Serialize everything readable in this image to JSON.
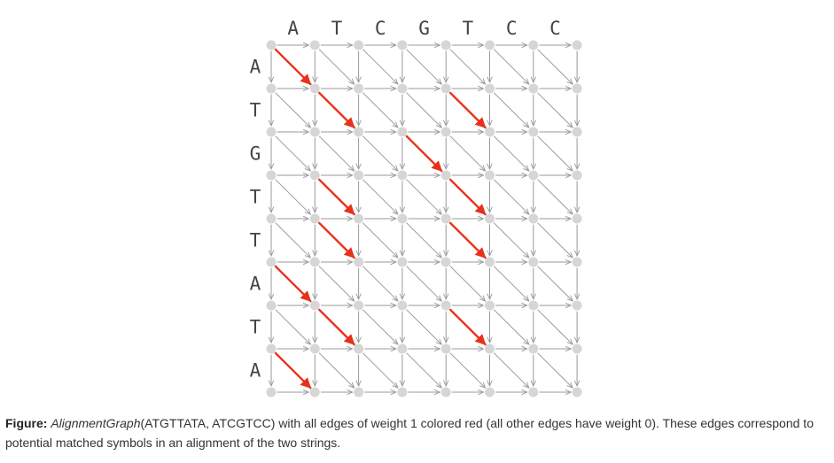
{
  "graph": {
    "column_string": "ATCGTCC",
    "row_string": "ATGTTATA",
    "colors": {
      "edge": "#9a9a9a",
      "edge_weight1": "#e8311a",
      "node": "#d6d6d6"
    }
  },
  "caption": {
    "lead": "Figure:",
    "function_name": "AlignmentGraph",
    "text": "(ATGTTATA, ATCGTCC) with all edges of weight 1 colored red (all other edges have weight 0). These edges correspond to potential matched symbols in an alignment of the two strings."
  }
}
